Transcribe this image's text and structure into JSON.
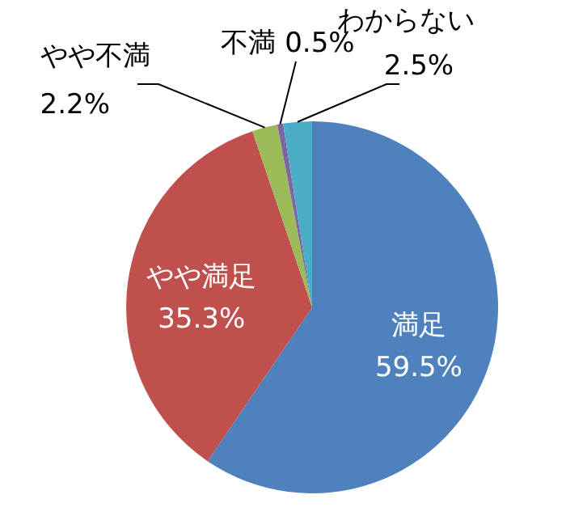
{
  "chart_data": {
    "type": "pie",
    "categories": [
      "満足",
      "やや満足",
      "やや不満",
      "不満",
      "わからない"
    ],
    "values": [
      59.5,
      35.3,
      2.2,
      0.5,
      2.5
    ],
    "value_labels": [
      "59.5%",
      "35.3%",
      "2.2%",
      "0.5%",
      "2.5%"
    ],
    "colors": [
      "#4f81bd",
      "#c0504d",
      "#9bbb59",
      "#8064a2",
      "#4bacc6"
    ],
    "legend": false
  }
}
